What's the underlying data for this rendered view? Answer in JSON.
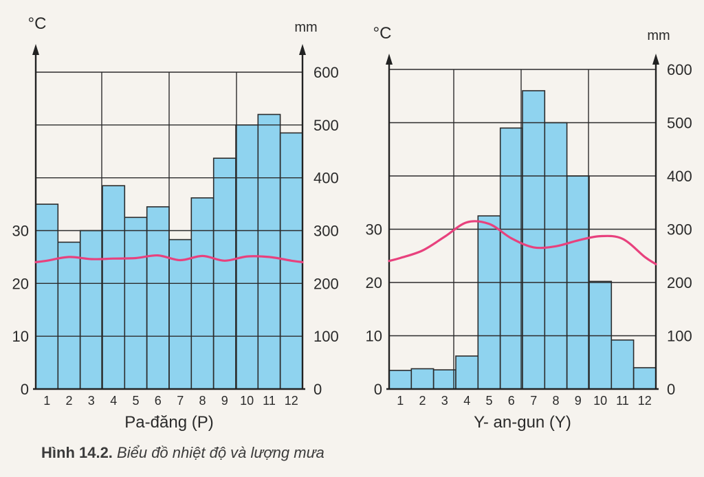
{
  "colors": {
    "bar_fill": "#8fd3ef",
    "bar_stroke": "#2b2b2b",
    "grid": "#2b2b2b",
    "temperature_line": "#e8417d",
    "background": "#f6f3ee"
  },
  "caption": {
    "label": "Hình 14.2.",
    "text": "Biểu đồ nhiệt độ và lượng mưa"
  },
  "chart_data": [
    {
      "type": "bar",
      "station": "Pa-đăng (P)",
      "left_axis_unit": "°C",
      "right_axis_unit": "mm",
      "temp_ticks": [
        0,
        10,
        20,
        30
      ],
      "rain_ticks": [
        0,
        100,
        200,
        300,
        400,
        500,
        600
      ],
      "rain_ylim": [
        0,
        600
      ],
      "temp_scale": "1 °C = 10 mm",
      "categories": [
        "1",
        "2",
        "3",
        "4",
        "5",
        "6",
        "7",
        "8",
        "9",
        "10",
        "11",
        "12"
      ],
      "series": [
        {
          "kind": "bar",
          "unit": "mm",
          "values": [
            350,
            278,
            300,
            385,
            325,
            345,
            283,
            362,
            437,
            500,
            520,
            485
          ]
        },
        {
          "kind": "line",
          "unit": "°C",
          "values": [
            24.3,
            25.0,
            24.6,
            24.7,
            24.8,
            25.3,
            24.4,
            25.2,
            24.3,
            25.1,
            25.0,
            24.3
          ]
        }
      ],
      "grid": true
    },
    {
      "type": "bar",
      "station": "Y- an-gun (Y)",
      "left_axis_unit": "°C",
      "right_axis_unit": "mm",
      "temp_ticks": [
        0,
        10,
        20,
        30
      ],
      "rain_ticks": [
        0,
        100,
        200,
        300,
        400,
        500,
        600
      ],
      "rain_ylim": [
        0,
        600
      ],
      "temp_scale": "1 °C = 10 mm",
      "categories": [
        "1",
        "2",
        "3",
        "4",
        "5",
        "6",
        "7",
        "8",
        "9",
        "10",
        "11",
        "12"
      ],
      "series": [
        {
          "kind": "bar",
          "unit": "mm",
          "values": [
            35,
            38,
            36,
            62,
            325,
            490,
            560,
            500,
            400,
            202,
            92,
            40
          ]
        },
        {
          "kind": "line",
          "unit": "°C",
          "values": [
            24.6,
            26.0,
            28.6,
            31.3,
            31.0,
            28.3,
            26.6,
            26.8,
            27.9,
            28.7,
            28.2,
            24.8
          ]
        }
      ],
      "grid": true
    }
  ]
}
